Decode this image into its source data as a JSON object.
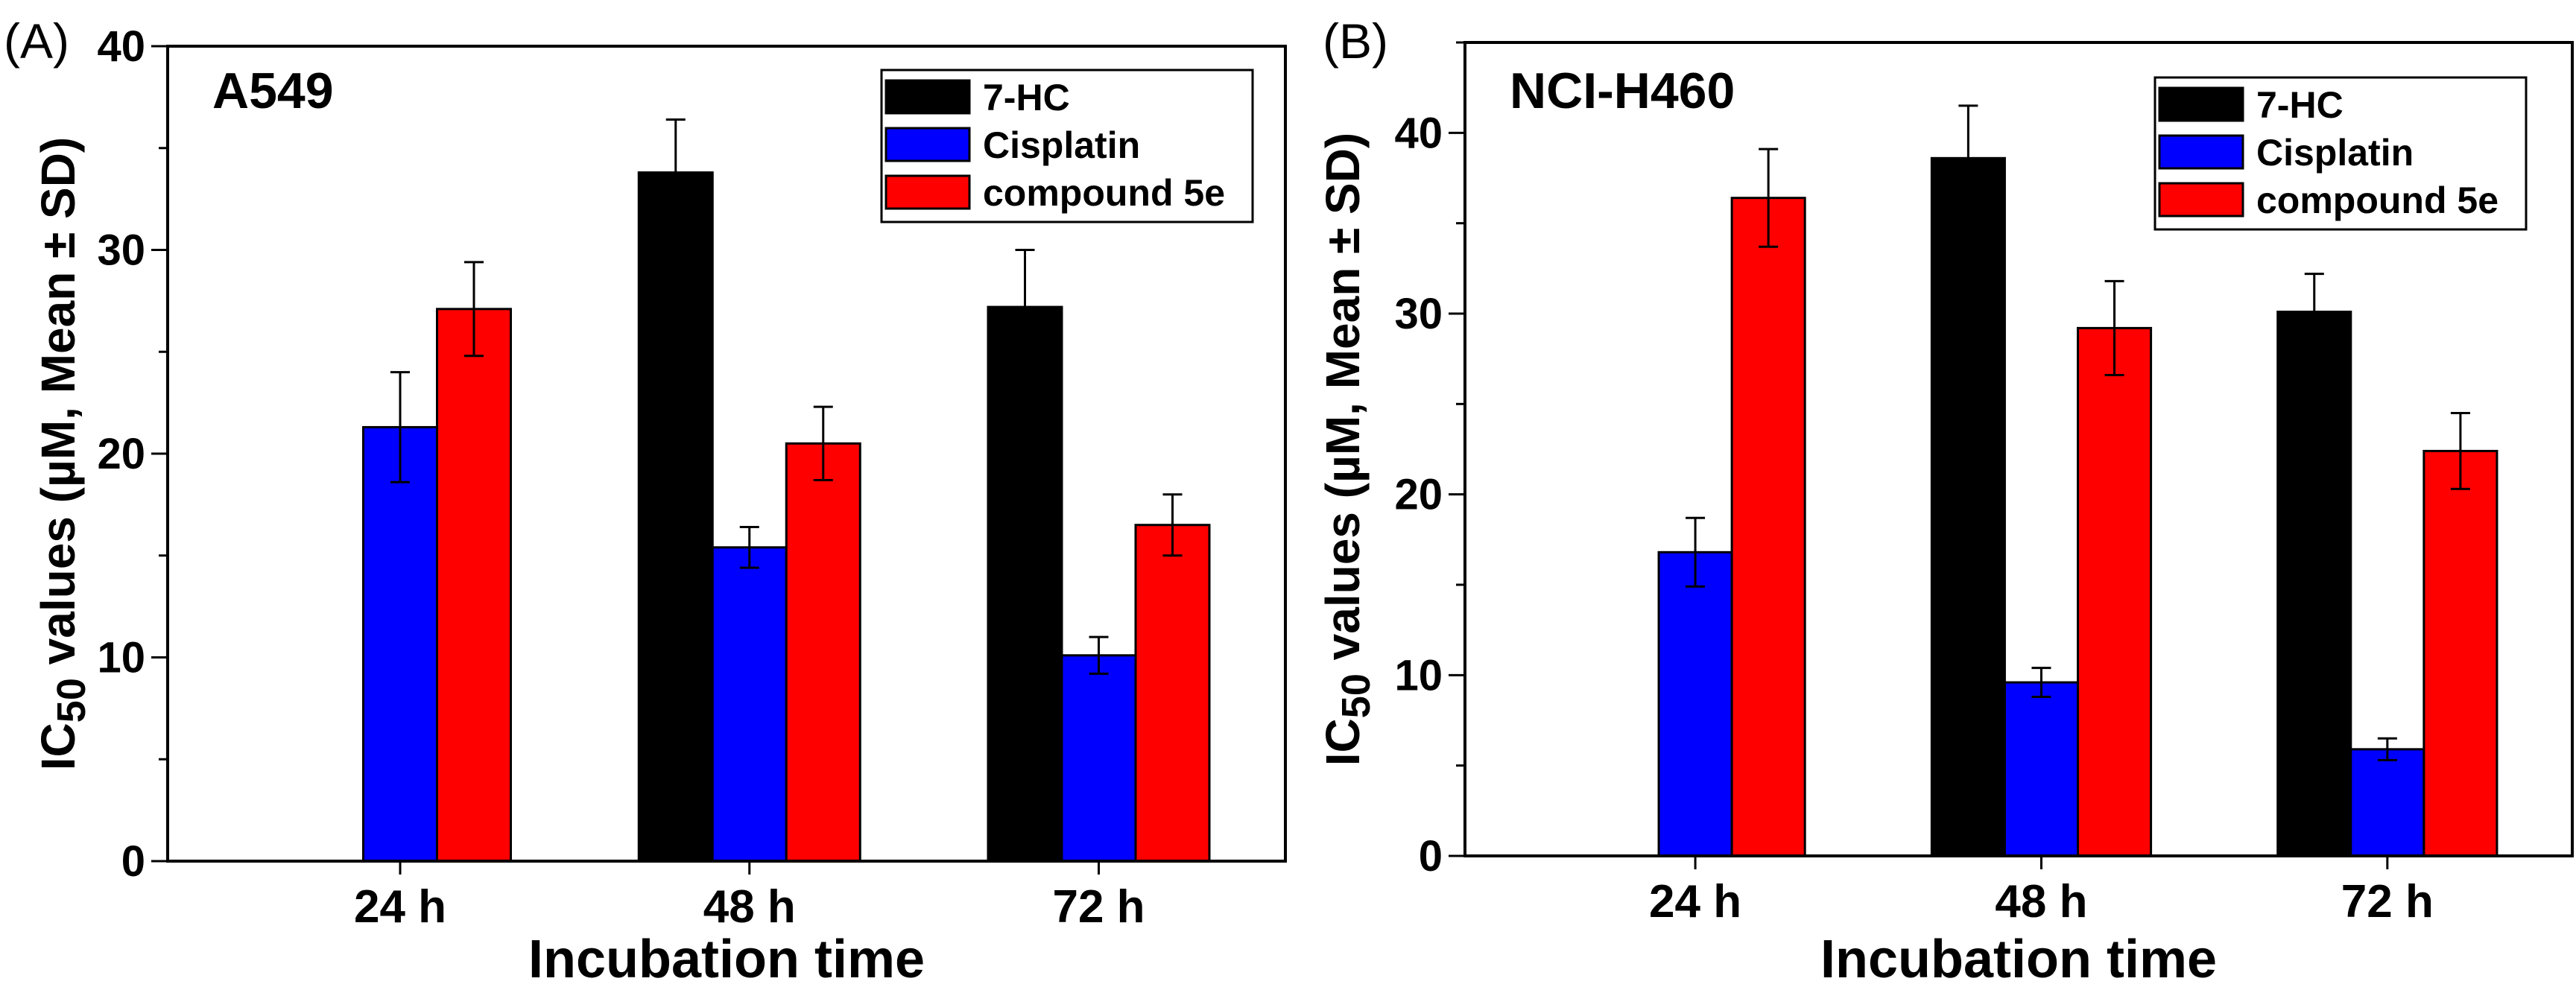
{
  "colors": {
    "7-HC": "#000000",
    "Cisplatin": "#0000ff",
    "compound 5e": "#ff0000"
  },
  "chart_data": [
    {
      "type": "bar",
      "panel_label": "(A)",
      "title": "A549",
      "xlabel": "Incubation time",
      "ylabel_main": "IC",
      "ylabel_sub": "50",
      "ylabel_rest": " values (µM, Mean ± SD)",
      "categories": [
        "24 h",
        "48 h",
        "72 h"
      ],
      "ylim": [
        0,
        40
      ],
      "yticks": [
        0,
        10,
        20,
        30,
        40
      ],
      "minor_step": 5,
      "legend_position": "top-right",
      "series": [
        {
          "name": "7-HC",
          "values": [
            null,
            33.8,
            27.2
          ],
          "errors": [
            null,
            2.6,
            2.8
          ]
        },
        {
          "name": "Cisplatin",
          "values": [
            21.3,
            15.4,
            10.1
          ],
          "errors": [
            2.7,
            1.0,
            0.9
          ]
        },
        {
          "name": "compound 5e",
          "values": [
            27.1,
            20.5,
            16.5
          ],
          "errors": [
            2.3,
            1.8,
            1.5
          ]
        }
      ]
    },
    {
      "type": "bar",
      "panel_label": "(B)",
      "title": "NCI-H460",
      "xlabel": "Incubation time",
      "ylabel_main": "IC",
      "ylabel_sub": "50",
      "ylabel_rest": " values (µM, Mean ± SD)",
      "categories": [
        "24 h",
        "48 h",
        "72 h"
      ],
      "ylim": [
        0,
        45
      ],
      "yticks": [
        0,
        10,
        20,
        30,
        40
      ],
      "minor_step": 5,
      "legend_position": "top-right",
      "series": [
        {
          "name": "7-HC",
          "values": [
            null,
            38.6,
            30.1
          ],
          "errors": [
            null,
            2.9,
            2.1
          ]
        },
        {
          "name": "Cisplatin",
          "values": [
            16.8,
            9.6,
            5.9
          ],
          "errors": [
            1.9,
            0.8,
            0.6
          ]
        },
        {
          "name": "compound 5e",
          "values": [
            36.4,
            29.2,
            22.4
          ],
          "errors": [
            2.7,
            2.6,
            2.1
          ]
        }
      ]
    }
  ]
}
